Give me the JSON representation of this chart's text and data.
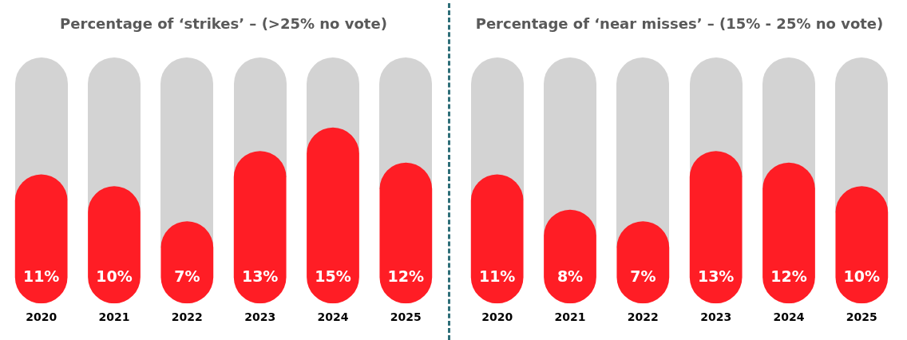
{
  "chart_data": [
    {
      "type": "bar",
      "title": "Percentage of ‘strikes’ – (>25% no vote)",
      "categories": [
        "2020",
        "2021",
        "2022",
        "2023",
        "2024",
        "2025"
      ],
      "values": [
        11,
        10,
        7,
        13,
        15,
        12
      ],
      "color": "#ff1d25",
      "value_labels": [
        "11%",
        "10%",
        "7%",
        "13%",
        "15%",
        "12%"
      ]
    },
    {
      "type": "bar",
      "title": "Percentage of ‘near misses’ – (15% - 25% no vote)",
      "categories": [
        "2020",
        "2021",
        "2022",
        "2023",
        "2024",
        "2025"
      ],
      "values": [
        11,
        8,
        7,
        13,
        12,
        10
      ],
      "color": "#ff1d25",
      "value_labels": [
        "11%",
        "8%",
        "7%",
        "13%",
        "12%",
        "10%"
      ]
    }
  ]
}
